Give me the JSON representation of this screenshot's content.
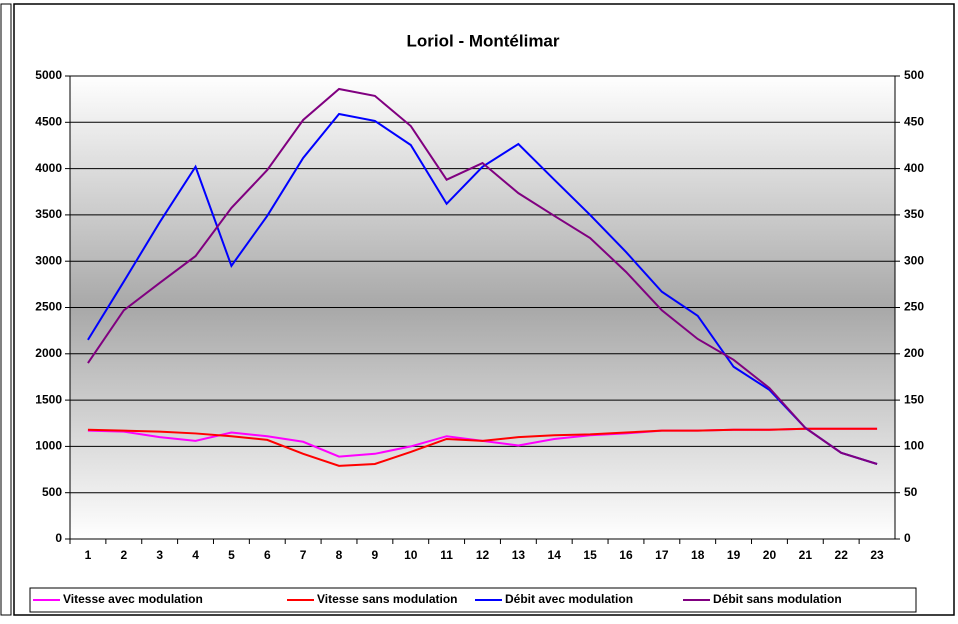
{
  "chart_data": {
    "type": "line",
    "title": "Loriol - Montélimar",
    "categories": [
      "1",
      "2",
      "3",
      "4",
      "5",
      "6",
      "7",
      "8",
      "9",
      "10",
      "11",
      "12",
      "13",
      "14",
      "15",
      "16",
      "17",
      "18",
      "19",
      "20",
      "21",
      "22",
      "23"
    ],
    "ylim": [
      0,
      5000
    ],
    "yticks": [
      0,
      500,
      1000,
      1500,
      2000,
      2500,
      3000,
      3500,
      4000,
      4500,
      5000
    ],
    "y2lim": [
      0,
      500
    ],
    "y2ticks": [
      0,
      50,
      100,
      150,
      200,
      250,
      300,
      350,
      400,
      450,
      500
    ],
    "grid": true,
    "legend": "bottom",
    "series": [
      {
        "name": "Vitesse avec modulation",
        "color": "#ff00ff",
        "axis": "y2",
        "values": [
          117,
          116,
          110,
          106,
          115,
          111,
          105,
          89,
          92,
          100,
          111,
          106,
          101,
          108,
          112,
          114,
          117,
          117,
          118,
          118,
          119,
          119,
          119
        ]
      },
      {
        "name": "Vitesse sans modulation",
        "color": "#ff0000",
        "axis": "y2",
        "values": [
          118,
          117,
          116,
          114,
          111,
          107,
          92,
          79,
          81,
          94,
          108,
          106,
          110,
          112,
          113,
          115,
          117,
          117,
          118,
          118,
          119,
          119,
          119
        ]
      },
      {
        "name": "Débit avec modulation",
        "color": "#0000ff",
        "values": [
          2150,
          2780,
          3420,
          4020,
          2950,
          3490,
          4115,
          4590,
          4515,
          4255,
          3620,
          4020,
          4265,
          3880,
          3500,
          3100,
          2670,
          2410,
          1860,
          1610,
          1200,
          930,
          810
        ]
      },
      {
        "name": "Débit sans modulation",
        "color": "#800080",
        "values": [
          1900,
          2470,
          2765,
          3055,
          3575,
          3985,
          4525,
          4860,
          4785,
          4460,
          3880,
          4060,
          3735,
          3490,
          3250,
          2885,
          2470,
          2160,
          1935,
          1630,
          1200,
          930,
          810
        ]
      }
    ]
  }
}
